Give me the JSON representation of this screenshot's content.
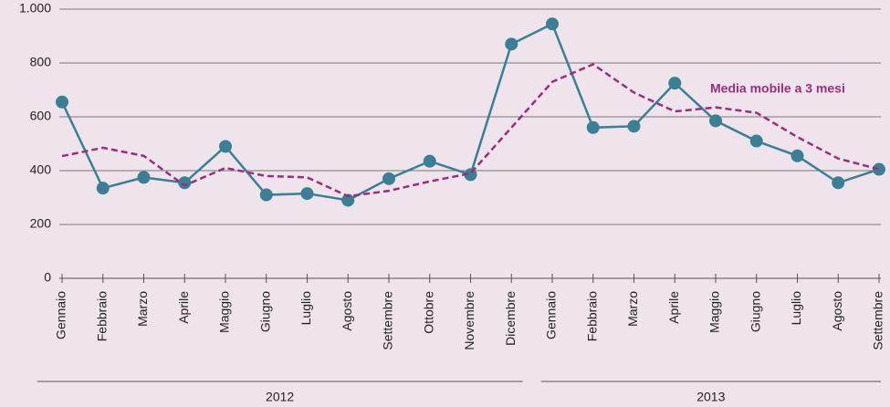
{
  "chart_data": {
    "type": "line",
    "categories": [
      "Gennaio",
      "Febbraio",
      "Marzo",
      "Aprile",
      "Maggio",
      "Giugno",
      "Luglio",
      "Agosto",
      "Settembre",
      "Ottobre",
      "Novembre",
      "Dicembre",
      "Gennaio",
      "Febbraio",
      "Marzo",
      "Aprile",
      "Maggio",
      "Giugno",
      "Luglio",
      "Agosto",
      "Settembre"
    ],
    "category_groups": [
      {
        "label": "2012",
        "size": 12
      },
      {
        "label": "2013",
        "size": 9
      }
    ],
    "series": [
      {
        "color": "#3a7f94",
        "dashed": false,
        "markers": true,
        "values": [
          655,
          335,
          375,
          355,
          490,
          310,
          315,
          290,
          370,
          435,
          385,
          870,
          945,
          560,
          565,
          725,
          585,
          510,
          455,
          355,
          405
        ]
      },
      {
        "name": "Media mobile a 3 mesi",
        "color": "#9a2e7a",
        "dashed": true,
        "markers": false,
        "values": [
          454,
          485,
          455,
          345,
          410,
          380,
          375,
          305,
          325,
          360,
          390,
          560,
          730,
          795,
          690,
          620,
          635,
          615,
          525,
          445,
          405
        ]
      }
    ],
    "ylim": [
      0,
      1000
    ],
    "yticks": [
      0,
      200,
      400,
      600,
      800,
      {
        "value": 1000,
        "label": "1.000"
      }
    ],
    "grid": true
  }
}
